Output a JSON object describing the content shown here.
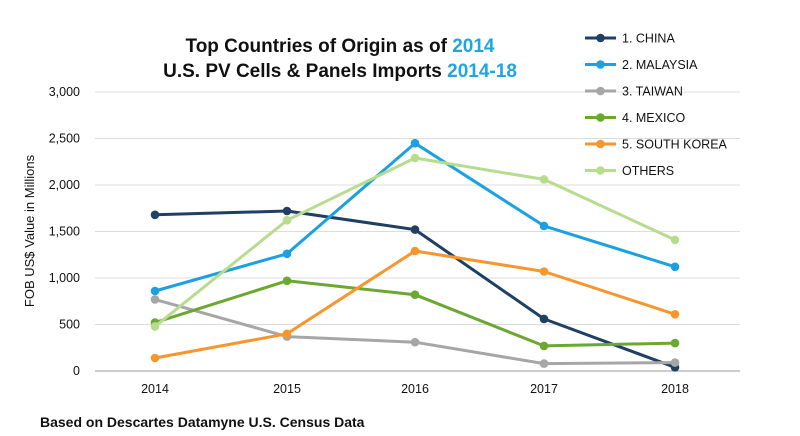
{
  "chart_data": {
    "type": "line",
    "title": {
      "line1_prefix": "Top Countries of Origin as of ",
      "line1_highlight": "2014",
      "line2_prefix": "U.S. PV Cells & Panels Imports ",
      "line2_highlight": "2014-18"
    },
    "xlabel": "",
    "ylabel": "FOB US$ Value in Millions",
    "x": [
      "2014",
      "2015",
      "2016",
      "2017",
      "2018"
    ],
    "ylim": [
      0,
      3000
    ],
    "yticks": [
      0,
      500,
      1000,
      1500,
      2000,
      2500,
      3000
    ],
    "ytick_labels": [
      "0",
      "500",
      "1,000",
      "1,500",
      "2,000",
      "2,500",
      "3,000"
    ],
    "grid": "horizontal",
    "legend_position": "top-right",
    "series": [
      {
        "name": "1. CHINA",
        "color": "#1f3f63",
        "values": [
          1680,
          1720,
          1520,
          560,
          40
        ]
      },
      {
        "name": "2. MALAYSIA",
        "color": "#1ba1e2",
        "values": [
          860,
          1260,
          2450,
          1560,
          1120
        ]
      },
      {
        "name": "3. TAIWAN",
        "color": "#a6a6a6",
        "values": [
          770,
          370,
          310,
          80,
          90
        ]
      },
      {
        "name": "4. MEXICO",
        "color": "#6ba831",
        "values": [
          520,
          970,
          820,
          270,
          300
        ]
      },
      {
        "name": "5. SOUTH KOREA",
        "color": "#f7962d",
        "values": [
          140,
          400,
          1290,
          1070,
          610
        ]
      },
      {
        "name": "OTHERS",
        "color": "#b8dc8e",
        "values": [
          480,
          1620,
          2290,
          2060,
          1410
        ]
      }
    ],
    "footnote": "Based on Descartes Datamyne U.S. Census Data"
  }
}
